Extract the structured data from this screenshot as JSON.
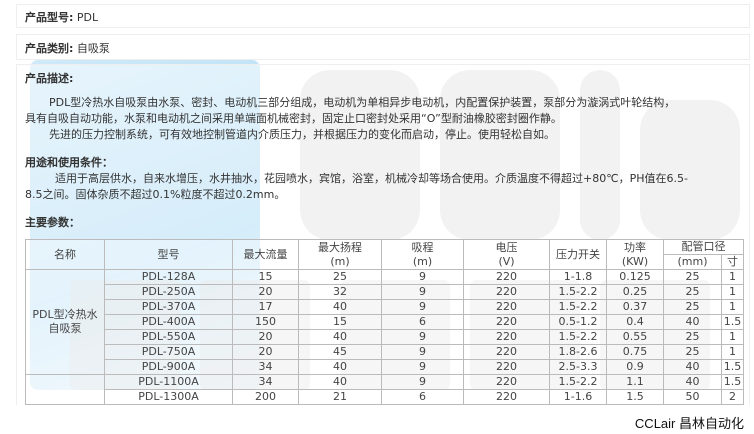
{
  "model": {
    "label": "产品型号:",
    "value": "PDL"
  },
  "category": {
    "label": "产品类别:",
    "value": "自吸泵"
  },
  "description": {
    "label": "产品描述:",
    "p1": "PDL型冷热水自吸泵由水泵、密封、电动机三部分组成，电动机为单相异步电动机，内配置保护装置，泵部分为漩涡式叶轮结构，",
    "p1b": "具有自吸自动功能，水泵和电动机之间采用单端面机械密封，固定止口密封处采用“O”型耐油橡胶密封圈作静。",
    "p2": "先进的压力控制系统，可有效地控制管道内介质压力，并根据压力的变化而启动，停止。使用轻松自如。"
  },
  "usage": {
    "label": "用途和使用条件：",
    "p1": "适用于高层供水，自来水增压，水井抽水，花园喷水，宾馆，浴室，机械冷却等场合使用。介质温度不得超过+80℃，PH值在6.5-",
    "p1b": "8.5之间。固体杂质不超过0.1%粒度不超过0.2mm。"
  },
  "params": {
    "label": "主要参数："
  },
  "table": {
    "headers": {
      "name": "名称",
      "model": "型号",
      "flow": "最大流量",
      "head": "最大扬程",
      "head_unit": "(m)",
      "suction": "吸程",
      "suction_unit": "(m)",
      "voltage": "电压",
      "voltage_unit": "(V)",
      "switch": "压力开关",
      "power": "功率",
      "power_unit": "(KW)",
      "pipe": "配管口径",
      "pipe_mm": "(mm)",
      "pipe_inch": "寸"
    },
    "group_name": "PDL型冷热水自吸泵",
    "rows": [
      [
        "PDL-128A",
        "15",
        "25",
        "9",
        "220",
        "1-1.8",
        "0.125",
        "25",
        "1"
      ],
      [
        "PDL-250A",
        "20",
        "32",
        "9",
        "220",
        "1.5-2.2",
        "0.25",
        "25",
        "1"
      ],
      [
        "PDL-370A",
        "17",
        "40",
        "9",
        "220",
        "1.5-2.2",
        "0.37",
        "25",
        "1"
      ],
      [
        "PDL-400A",
        "150",
        "15",
        "6",
        "220",
        "0.5-1.2",
        "0.4",
        "40",
        "1.5"
      ],
      [
        "PDL-550A",
        "20",
        "40",
        "9",
        "220",
        "1.5-2.2",
        "0.55",
        "25",
        "1"
      ],
      [
        "PDL-750A",
        "20",
        "45",
        "9",
        "220",
        "1.8-2.6",
        "0.75",
        "25",
        "1"
      ],
      [
        "PDL-900A",
        "34",
        "40",
        "9",
        "220",
        "2.5-3.3",
        "0.9",
        "40",
        "1.5"
      ],
      [
        "PDL-1100A",
        "34",
        "40",
        "9",
        "220",
        "1.5-2.2",
        "1.1",
        "40",
        "1.5"
      ],
      [
        "PDL-1300A",
        "200",
        "21",
        "6",
        "220",
        "1-1.6",
        "1.5",
        "50",
        "2"
      ]
    ]
  },
  "watermark": {
    "brand": "CCLair",
    "cn": "昌林自动化",
    "corner": "CCLair 昌林自动化"
  }
}
